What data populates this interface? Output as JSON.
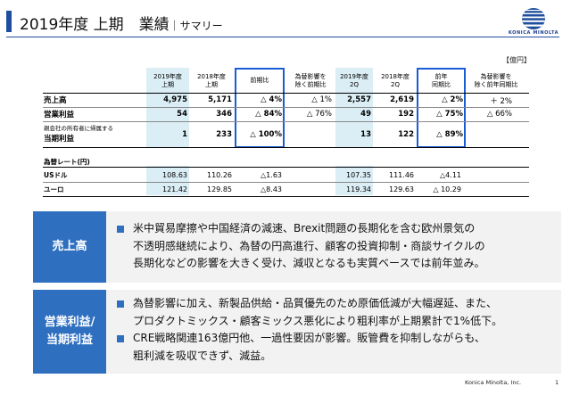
{
  "header": {
    "title": "2019年度 上期　業績",
    "subtitle": "｜サマリー"
  },
  "logo": {
    "text": "KONICA MINOLTA"
  },
  "unit": "【億円】",
  "table": {
    "columns": [
      "2019年度\n上期",
      "2018年度\n上期",
      "前期比",
      "為替影響を\n除く前期比",
      "2019年度\n2Q",
      "2018年度\n2Q",
      "前年\n同期比",
      "為替影響を\n除く前年同期比"
    ],
    "rows": [
      {
        "label": "売上高",
        "values": [
          "4,975",
          "5,171",
          "△ 4%",
          "△ 1%",
          "2,557",
          "2,619",
          "△ 2%",
          "＋ 2%"
        ]
      },
      {
        "label": "営業利益",
        "values": [
          "54",
          "346",
          "△ 84%",
          "△ 76%",
          "49",
          "192",
          "△ 75%",
          "△ 66%"
        ]
      },
      {
        "label_small": "親会社の所有者に帰属する",
        "label": "当期利益",
        "values": [
          "1",
          "233",
          "△ 100%",
          "",
          "13",
          "122",
          "△ 89%",
          ""
        ]
      }
    ],
    "fx": {
      "title": "為替レート(円)",
      "rows": [
        {
          "label": "USドル",
          "values": [
            "108.63",
            "110.26",
            "△1.63",
            "",
            "107.35",
            "111.46",
            "△4.11",
            ""
          ]
        },
        {
          "label": "ユーロ",
          "values": [
            "121.42",
            "129.85",
            "△8.43",
            "",
            "119.34",
            "129.63",
            "△ 10.29",
            ""
          ]
        }
      ]
    }
  },
  "panels": [
    {
      "label": "売上高",
      "bullets": [
        [
          "米中貿易摩擦や中国経済の減速、Brexit問題の長期化を含む欧州景気の",
          "不透明感継続により、為替の円高進行、顧客の投資抑制・商談サイクルの",
          "長期化などの影響を大きく受け、減収となるも実質ベースでは前年並み。"
        ]
      ]
    },
    {
      "label_lines": [
        "営業利益/",
        "当期利益"
      ],
      "bullets": [
        [
          "為替影響に加え、新製品供給・品質優先のため原価低減が大幅遅延、また、",
          "プロダクトミックス・顧客ミックス悪化により粗利率が上期累計で1%低下。"
        ],
        [
          "CRE戦略関連163億円他、一過性要因が影響。販管費を抑制しながらも、",
          "粗利減を吸収できず、減益。"
        ]
      ]
    }
  ],
  "footer": {
    "company": "Konica Minolta, Inc.",
    "page": "1"
  },
  "colors": {
    "accent": "#1f4e9c",
    "panel_blue": "#2e6fc0",
    "highlight": "#dbeef5",
    "box": "#1a5bd6"
  }
}
